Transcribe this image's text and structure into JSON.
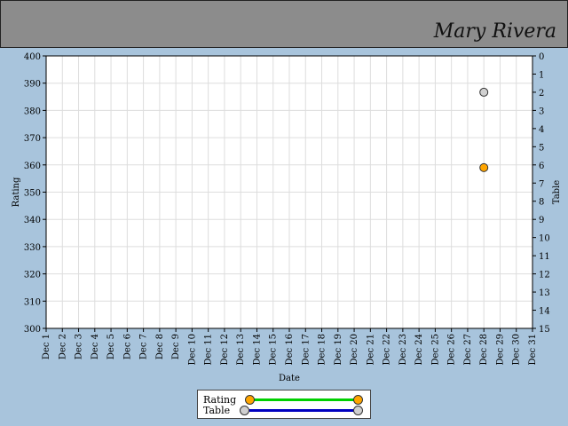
{
  "header": {
    "user_name": "Mary Rivera"
  },
  "colors": {
    "background": "#a8c4dc",
    "rating_line": "#00d000",
    "rating_marker": "#ffa500",
    "table_line": "#0000c0",
    "table_marker": "#d0d0d0"
  },
  "chart_data": {
    "type": "scatter",
    "xlabel": "Date",
    "ylabel": "Rating",
    "y2label": "Table",
    "categories": [
      "Dec 1",
      "Dec 2",
      "Dec 3",
      "Dec 4",
      "Dec 5",
      "Dec 6",
      "Dec 7",
      "Dec 8",
      "Dec 9",
      "Dec 10",
      "Dec 11",
      "Dec 12",
      "Dec 13",
      "Dec 14",
      "Dec 15",
      "Dec 16",
      "Dec 17",
      "Dec 18",
      "Dec 19",
      "Dec 20",
      "Dec 21",
      "Dec 22",
      "Dec 23",
      "Dec 24",
      "Dec 25",
      "Dec 26",
      "Dec 27",
      "Dec 28",
      "Dec 29",
      "Dec 30",
      "Dec 31"
    ],
    "ylim": [
      300,
      400
    ],
    "yticks": [
      300,
      310,
      320,
      330,
      340,
      350,
      360,
      370,
      380,
      390,
      400
    ],
    "y2lim": [
      15,
      0
    ],
    "y2ticks": [
      0,
      1,
      2,
      3,
      4,
      5,
      6,
      7,
      8,
      9,
      10,
      11,
      12,
      13,
      14,
      15
    ],
    "grid": true,
    "legend": "bottom",
    "series": [
      {
        "name": "Rating",
        "axis": "left",
        "points": [
          {
            "x": "Dec 28",
            "y": 359
          }
        ]
      },
      {
        "name": "Table",
        "axis": "right",
        "points": [
          {
            "x": "Dec 28",
            "y": 2
          }
        ]
      }
    ]
  }
}
